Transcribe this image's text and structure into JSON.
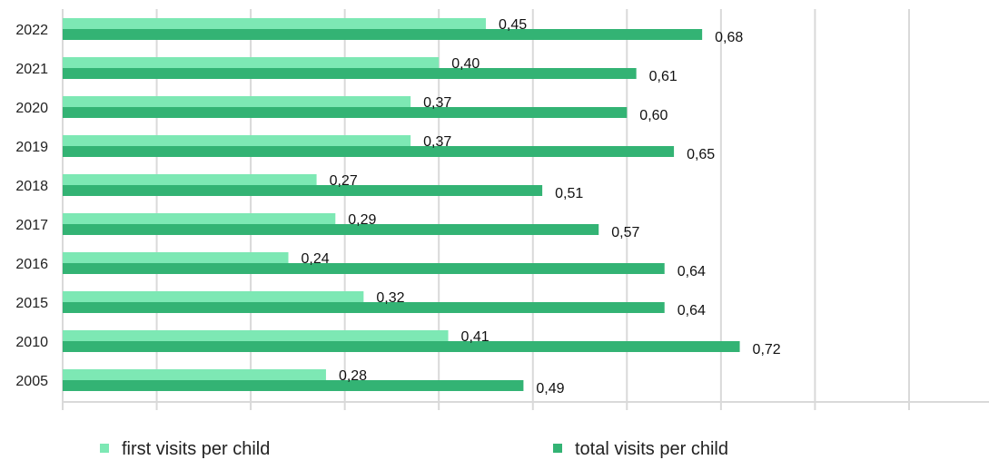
{
  "chart_data": {
    "type": "bar",
    "orientation": "horizontal",
    "categories": [
      "2022",
      "2021",
      "2020",
      "2019",
      "2018",
      "2017",
      "2016",
      "2015",
      "2010",
      "2005"
    ],
    "series": [
      {
        "name": "first visits per child",
        "color": "#7de8b4",
        "values": [
          0.45,
          0.4,
          0.37,
          0.37,
          0.27,
          0.29,
          0.24,
          0.32,
          0.41,
          0.28
        ],
        "labels": [
          "0,45",
          "0,40",
          "0,37",
          "0,37",
          "0,27",
          "0,29",
          "0,24",
          "0,32",
          "0,41",
          "0,28"
        ]
      },
      {
        "name": "total visits per child",
        "color": "#33b374",
        "values": [
          0.68,
          0.61,
          0.6,
          0.65,
          0.51,
          0.57,
          0.64,
          0.64,
          0.72,
          0.49
        ],
        "labels": [
          "0,68",
          "0,61",
          "0,60",
          "0,65",
          "0,51",
          "0,57",
          "0,64",
          "0,64",
          "0,72",
          "0,49"
        ]
      }
    ],
    "xlim": [
      0,
      1.0
    ],
    "grid_step": 0.1,
    "grid": true,
    "legend_position": "bottom"
  }
}
